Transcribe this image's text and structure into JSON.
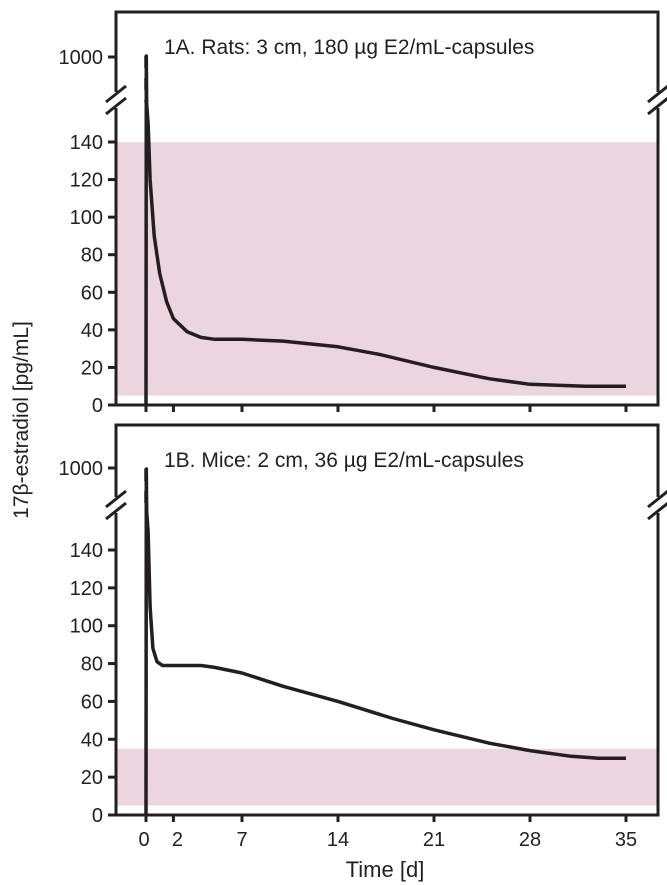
{
  "colors": {
    "band": "#ebd6df",
    "line": "#231f20",
    "frame": "#231f20"
  },
  "ylabel": "17β-estradiol [pg/mL]",
  "xlabel": "Time [d]",
  "chart_data": [
    {
      "type": "line",
      "title": "1A. Rats: 3 cm, 180 µg E2/mL-capsules",
      "ylabel": "17β-estradiol [pg/mL]",
      "xlabel": "",
      "x_ticks": [
        0,
        2,
        7,
        14,
        21,
        28,
        35
      ],
      "y_ticks": [
        0,
        20,
        40,
        60,
        80,
        100,
        120,
        140,
        1000
      ],
      "ylim": [
        0,
        1000
      ],
      "axis_break": "between 140 and 1000",
      "physiological_range": [
        5,
        140
      ],
      "series": [
        {
          "x": [
            0,
            0.02,
            0.05,
            0.15,
            0.3,
            0.6,
            1.0,
            1.5,
            2.0,
            3.0,
            4.0,
            5.0,
            7.0,
            10.0,
            14.0,
            17.0,
            21.0,
            25.0,
            28.0,
            32.0,
            35.0
          ],
          "y": [
            0,
            1000,
            160,
            150,
            120,
            90,
            70,
            55,
            46,
            39,
            36,
            35,
            35,
            34,
            31,
            27,
            20,
            14,
            11,
            10,
            10
          ]
        }
      ]
    },
    {
      "type": "line",
      "title": "1B. Mice: 2 cm, 36 µg E2/mL-capsules",
      "ylabel": "17β-estradiol [pg/mL]",
      "xlabel": "Time [d]",
      "x_ticks": [
        0,
        2,
        7,
        14,
        21,
        28,
        35
      ],
      "y_ticks": [
        0,
        20,
        40,
        60,
        80,
        100,
        120,
        140,
        1000
      ],
      "ylim": [
        0,
        1000
      ],
      "axis_break": "between 140 and 1000",
      "physiological_range": [
        5,
        35
      ],
      "series": [
        {
          "x": [
            0,
            0.02,
            0.05,
            0.15,
            0.3,
            0.5,
            0.8,
            1.2,
            2.0,
            4.0,
            5.0,
            7.0,
            10.0,
            14.0,
            18.0,
            21.0,
            25.0,
            28.0,
            31.0,
            33.0,
            35.0
          ],
          "y": [
            0,
            1000,
            160,
            150,
            110,
            88,
            81,
            79,
            79,
            79,
            78,
            75,
            68,
            60,
            51,
            45,
            38,
            34,
            31,
            30,
            30
          ]
        }
      ]
    }
  ]
}
